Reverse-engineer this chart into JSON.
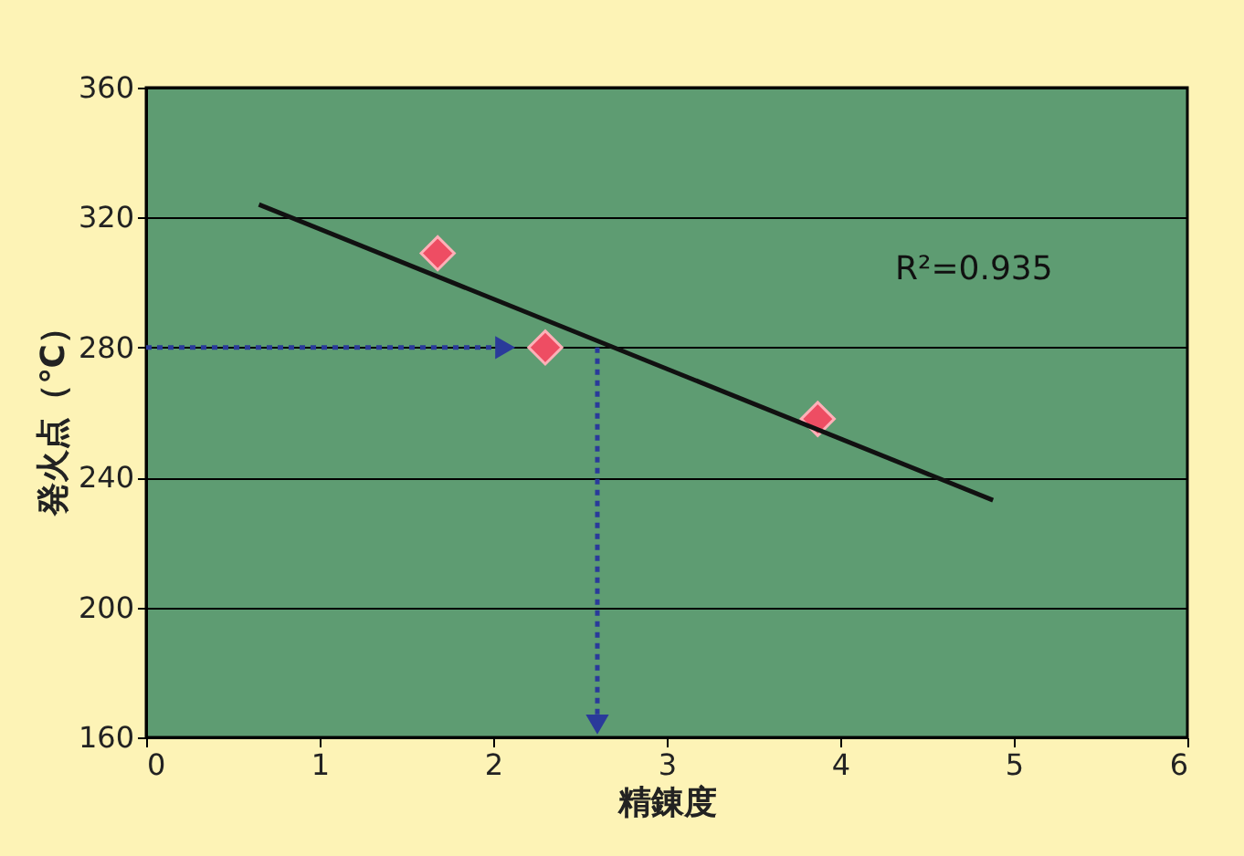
{
  "chart_data": {
    "type": "scatter",
    "xlabel": "精錬度",
    "ylabel": "発火点（℃）",
    "xlim": [
      0,
      6
    ],
    "xticks": [
      0,
      1,
      2,
      3,
      4,
      5,
      6
    ],
    "ylim": [
      160,
      360
    ],
    "yticks": [
      160,
      200,
      240,
      280,
      320,
      360
    ],
    "grid": "y",
    "series": [
      {
        "marker": "diamond",
        "color": "#ee4d63",
        "x": [
          1.68,
          2.3,
          3.87
        ],
        "values": [
          309,
          280,
          258
        ]
      },
      {
        "type": "line",
        "marker": "none",
        "line_style": "solid",
        "color": "#111111",
        "x": [
          0.65,
          4.88
        ],
        "values": [
          324,
          233
        ]
      },
      {
        "type": "line",
        "marker": "triangle",
        "line_style": "dotted",
        "color": "#2a3a9a",
        "x": [
          0,
          2.05
        ],
        "values": [
          280,
          280
        ]
      },
      {
        "type": "line",
        "marker": "triangle",
        "line_style": "dotted",
        "color": "#2a3a9a",
        "x": [
          2.6,
          2.6
        ],
        "values": [
          280,
          165
        ]
      }
    ],
    "annotations": [
      "R²=0.935"
    ]
  }
}
